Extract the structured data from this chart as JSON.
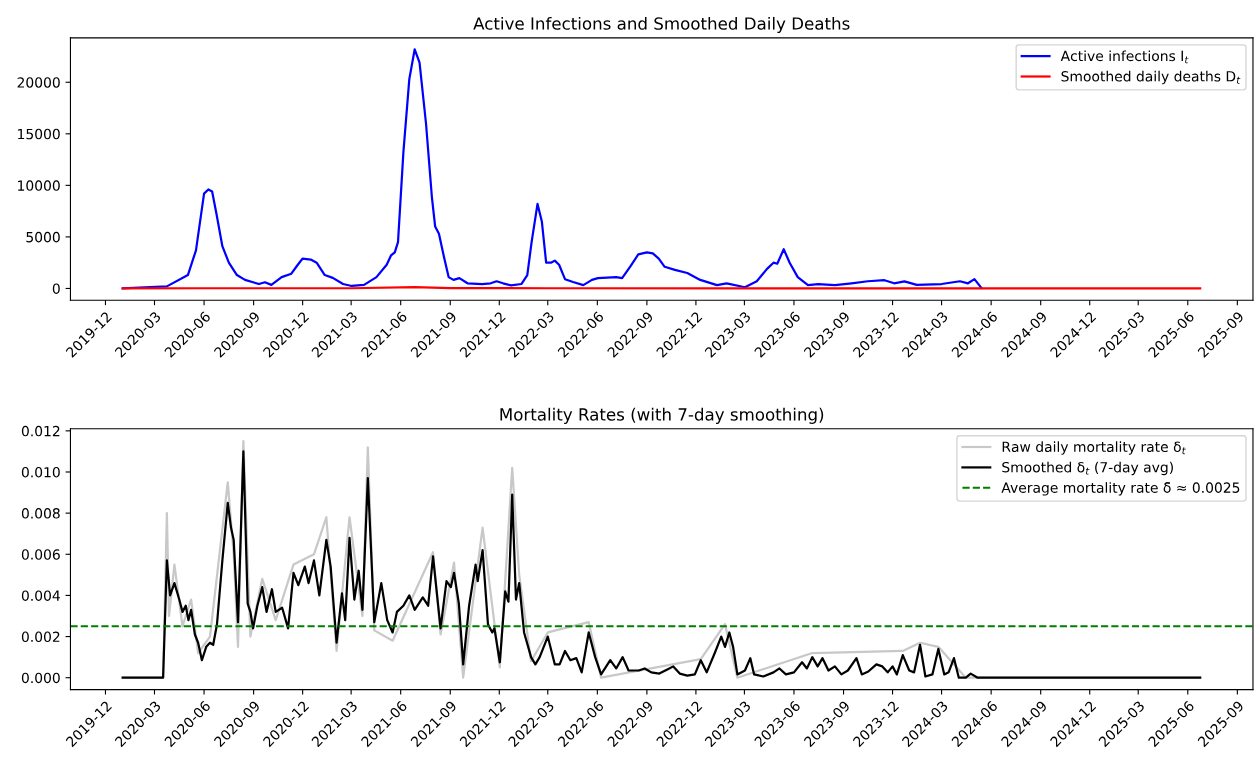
{
  "chart_data": [
    {
      "type": "line",
      "title": "Active Infections and Smoothed Daily Deaths",
      "xlim": [
        "2019-09-27",
        "2025-09-30"
      ],
      "xticks": [
        "2019-12",
        "2020-03",
        "2020-06",
        "2020-09",
        "2020-12",
        "2021-03",
        "2021-06",
        "2021-09",
        "2021-12",
        "2022-03",
        "2022-06",
        "2022-09",
        "2022-12",
        "2023-03",
        "2023-06",
        "2023-09",
        "2023-12",
        "2024-03",
        "2024-06",
        "2024-09",
        "2024-12",
        "2025-03",
        "2025-06",
        "2025-09"
      ],
      "ylim": [
        -1150,
        24300
      ],
      "yticks": [
        0,
        5000,
        10000,
        15000,
        20000
      ],
      "grid": false,
      "legend": "top right",
      "series": [
        {
          "name": "Active infections I$_{t}$",
          "color": "#0000ff",
          "x": [
            "2020-01-02",
            "2020-03-24",
            "2020-05-02",
            "2020-05-17",
            "2020-06-01",
            "2020-06-09",
            "2020-06-16",
            "2020-06-24",
            "2020-07-05",
            "2020-07-17",
            "2020-08-01",
            "2020-08-16",
            "2020-08-31",
            "2020-09-11",
            "2020-09-22",
            "2020-10-04",
            "2020-10-23",
            "2020-11-10",
            "2020-11-22",
            "2020-12-01",
            "2020-12-16",
            "2020-12-27",
            "2021-01-11",
            "2021-01-26",
            "2021-02-14",
            "2021-03-02",
            "2021-03-25",
            "2021-04-17",
            "2021-05-06",
            "2021-05-14",
            "2021-05-21",
            "2021-05-27",
            "2021-06-06",
            "2021-06-17",
            "2021-06-27",
            "2021-07-06",
            "2021-07-18",
            "2021-07-29",
            "2021-08-04",
            "2021-08-11",
            "2021-08-21",
            "2021-08-29",
            "2021-09-07",
            "2021-09-18",
            "2021-10-03",
            "2021-10-30",
            "2021-11-15",
            "2021-11-26",
            "2021-12-08",
            "2021-12-23",
            "2022-01-11",
            "2022-01-22",
            "2022-01-30",
            "2022-02-10",
            "2022-02-18",
            "2022-02-26",
            "2022-03-07",
            "2022-03-14",
            "2022-03-22",
            "2022-04-02",
            "2022-04-17",
            "2022-05-06",
            "2022-05-22",
            "2022-06-02",
            "2022-07-06",
            "2022-07-17",
            "2022-08-02",
            "2022-08-16",
            "2022-09-01",
            "2022-09-12",
            "2022-09-23",
            "2022-10-04",
            "2022-10-23",
            "2022-11-15",
            "2022-12-09",
            "2023-01-09",
            "2023-01-27",
            "2023-03-02",
            "2023-03-24",
            "2023-04-12",
            "2023-04-24",
            "2023-05-01",
            "2023-05-13",
            "2023-05-24",
            "2023-06-08",
            "2023-06-27",
            "2023-07-16",
            "2023-08-16",
            "2023-09-16",
            "2023-10-16",
            "2023-11-16",
            "2023-12-04",
            "2023-12-23",
            "2024-01-15",
            "2024-03-01",
            "2024-04-04",
            "2024-04-19",
            "2024-05-01",
            "2024-05-14"
          ],
          "values": [
            0,
            200,
            1300,
            3700,
            9200,
            9600,
            9400,
            7250,
            4100,
            2500,
            1300,
            830,
            600,
            430,
            600,
            350,
            1100,
            1430,
            2300,
            2900,
            2800,
            2500,
            1300,
            1030,
            430,
            240,
            350,
            1100,
            2300,
            3200,
            3500,
            4500,
            13200,
            20300,
            23200,
            21900,
            16000,
            8800,
            6000,
            5300,
            2900,
            1100,
            830,
            1000,
            500,
            430,
            500,
            700,
            500,
            300,
            430,
            1300,
            4500,
            8200,
            6500,
            2500,
            2500,
            2700,
            2300,
            900,
            630,
            320,
            830,
            1000,
            1100,
            1000,
            2200,
            3300,
            3500,
            3400,
            2900,
            2100,
            1800,
            1500,
            830,
            320,
            500,
            120,
            700,
            1900,
            2500,
            2400,
            3800,
            2500,
            1100,
            320,
            430,
            320,
            500,
            700,
            800,
            500,
            680,
            350,
            430,
            700,
            500,
            900,
            40
          ]
        },
        {
          "name": "Smoothed daily deaths D$_{t}$",
          "color": "#ff0000",
          "x": [
            "2020-01-02",
            "2020-06-01",
            "2021-03-01",
            "2021-06-27",
            "2021-09-01",
            "2022-03-01",
            "2024-05-14",
            "2024-05-15",
            "2025-06-24"
          ],
          "values": [
            0,
            20,
            20,
            120,
            30,
            20,
            5,
            0,
            0
          ]
        }
      ]
    },
    {
      "type": "line",
      "title": "Mortality Rates (with 7-day smoothing)",
      "xlim": [
        "2019-09-27",
        "2025-09-30"
      ],
      "xticks": [
        "2019-12",
        "2020-03",
        "2020-06",
        "2020-09",
        "2020-12",
        "2021-03",
        "2021-06",
        "2021-09",
        "2021-12",
        "2022-03",
        "2022-06",
        "2022-09",
        "2022-12",
        "2023-03",
        "2023-06",
        "2023-09",
        "2023-12",
        "2024-03",
        "2024-06",
        "2024-09",
        "2024-12",
        "2025-03",
        "2025-06",
        "2025-09"
      ],
      "ylim": [
        -0.00058,
        0.0121
      ],
      "yticks": [
        {
          "value": 0,
          "label": "0.000"
        },
        {
          "value": 0.002,
          "label": "0.002"
        },
        {
          "value": 0.004,
          "label": "0.004"
        },
        {
          "value": 0.006,
          "label": "0.006"
        },
        {
          "value": 0.008,
          "label": "0.008"
        },
        {
          "value": 0.01,
          "label": "0.010"
        },
        {
          "value": 0.012,
          "label": "0.012"
        }
      ],
      "grid": false,
      "legend": "top right",
      "ref_lines": [
        {
          "axis": "y",
          "value": 0.0025,
          "label": "Average mortality rate δ̄ ≈ 0.0025",
          "color": "#008000",
          "line_style": "dashed"
        }
      ],
      "series": [
        {
          "name": "Raw daily mortality rate δ$_{t}$",
          "color": "#c8c8c8",
          "x": [
            "2020-01-02",
            "2020-03-17",
            "2020-03-24",
            "2020-03-28",
            "2020-04-07",
            "2020-04-22",
            "2020-05-08",
            "2020-05-21",
            "2020-06-12",
            "2020-07-15",
            "2020-07-26",
            "2020-08-03",
            "2020-08-13",
            "2020-08-26",
            "2020-09-17",
            "2020-10-12",
            "2020-11-14",
            "2020-12-22",
            "2021-01-14",
            "2021-02-02",
            "2021-02-26",
            "2021-03-22",
            "2021-04-01",
            "2021-04-13",
            "2021-05-17",
            "2021-07-31",
            "2021-08-14",
            "2021-09-08",
            "2021-09-25",
            "2021-10-31",
            "2021-12-02",
            "2021-12-25",
            "2022-01-07",
            "2022-01-29",
            "2022-03-01",
            "2022-05-16",
            "2022-06-08",
            "2022-12-10",
            "2023-01-24",
            "2023-02-16",
            "2023-07-05",
            "2023-12-20",
            "2024-01-21",
            "2024-02-24",
            "2024-04-15",
            "2025-06-24"
          ],
          "values": [
            0,
            0,
            0.008,
            0.003,
            0.0055,
            0.0025,
            0.0038,
            0.0012,
            0.002,
            0.0095,
            0.006,
            0.0015,
            0.0115,
            0.002,
            0.0048,
            0.0028,
            0.0055,
            0.006,
            0.0078,
            0.0013,
            0.0078,
            0.003,
            0.0112,
            0.0023,
            0.0018,
            0.0061,
            0.0021,
            0.0056,
            0,
            0.0073,
            0.0005,
            0.0102,
            0.005,
            0.0008,
            0.0022,
            0.0027,
            0,
            0.0009,
            0.0026,
            0,
            0.0012,
            0.0013,
            0.0017,
            0.0015,
            0,
            0
          ]
        },
        {
          "name": "Smoothed δ$_{t}$ (7-day avg)",
          "color": "#000000",
          "x": [
            "2020-01-02",
            "2020-03-17",
            "2020-03-24",
            "2020-03-30",
            "2020-04-07",
            "2020-04-16",
            "2020-04-22",
            "2020-04-28",
            "2020-05-03",
            "2020-05-08",
            "2020-05-15",
            "2020-05-21",
            "2020-05-28",
            "2020-06-05",
            "2020-06-12",
            "2020-06-18",
            "2020-06-25",
            "2020-07-05",
            "2020-07-15",
            "2020-07-21",
            "2020-07-26",
            "2020-08-03",
            "2020-08-13",
            "2020-08-21",
            "2020-08-26",
            "2020-08-31",
            "2020-09-08",
            "2020-09-17",
            "2020-09-25",
            "2020-10-05",
            "2020-10-12",
            "2020-10-24",
            "2020-11-04",
            "2020-11-14",
            "2020-11-23",
            "2020-12-05",
            "2020-12-12",
            "2020-12-22",
            "2021-01-01",
            "2021-01-14",
            "2021-01-22",
            "2021-02-02",
            "2021-02-12",
            "2021-02-18",
            "2021-02-26",
            "2021-03-07",
            "2021-03-15",
            "2021-03-22",
            "2021-04-01",
            "2021-04-13",
            "2021-04-26",
            "2021-05-07",
            "2021-05-17",
            "2021-05-25",
            "2021-06-06",
            "2021-06-17",
            "2021-06-27",
            "2021-07-12",
            "2021-07-22",
            "2021-07-31",
            "2021-08-14",
            "2021-08-25",
            "2021-09-02",
            "2021-09-08",
            "2021-09-17",
            "2021-09-25",
            "2021-10-06",
            "2021-10-18",
            "2021-10-22",
            "2021-10-31",
            "2021-11-10",
            "2021-11-18",
            "2021-11-22",
            "2021-12-02",
            "2021-12-12",
            "2021-12-18",
            "2021-12-25",
            "2022-01-01",
            "2022-01-07",
            "2022-01-16",
            "2022-01-29",
            "2022-02-06",
            "2022-02-14",
            "2022-03-01",
            "2022-03-14",
            "2022-03-23",
            "2022-04-02",
            "2022-04-12",
            "2022-04-23",
            "2022-05-03",
            "2022-05-16",
            "2022-05-28",
            "2022-06-08",
            "2022-06-25",
            "2022-07-06",
            "2022-07-18",
            "2022-07-29",
            "2022-08-17",
            "2022-08-28",
            "2022-09-09",
            "2022-09-24",
            "2022-10-09",
            "2022-10-20",
            "2022-11-01",
            "2022-11-15",
            "2022-11-29",
            "2022-12-10",
            "2022-12-21",
            "2023-01-05",
            "2023-01-17",
            "2023-01-24",
            "2023-02-01",
            "2023-02-08",
            "2023-02-16",
            "2023-03-02",
            "2023-03-12",
            "2023-03-19",
            "2023-04-05",
            "2023-04-24",
            "2023-05-05",
            "2023-05-17",
            "2023-06-01",
            "2023-06-16",
            "2023-06-25",
            "2023-07-05",
            "2023-07-15",
            "2023-07-24",
            "2023-08-04",
            "2023-08-16",
            "2023-08-28",
            "2023-09-09",
            "2023-09-25",
            "2023-10-05",
            "2023-10-17",
            "2023-11-01",
            "2023-11-12",
            "2023-11-22",
            "2023-12-01",
            "2023-12-09",
            "2023-12-20",
            "2024-01-01",
            "2024-01-10",
            "2024-01-21",
            "2024-01-31",
            "2024-02-13",
            "2024-02-24",
            "2024-03-06",
            "2024-03-14",
            "2024-03-24",
            "2024-04-02",
            "2024-04-15",
            "2024-04-24",
            "2024-05-07",
            "2025-06-24"
          ],
          "values": [
            0,
            0,
            0.0057,
            0.004,
            0.0046,
            0.0038,
            0.0032,
            0.0035,
            0.0028,
            0.0033,
            0.0021,
            0.0017,
            0.00085,
            0.0015,
            0.0017,
            0.0016,
            0.0026,
            0.0057,
            0.0085,
            0.0073,
            0.0067,
            0.0027,
            0.011,
            0.0036,
            0.0032,
            0.0024,
            0.0035,
            0.0044,
            0.0032,
            0.0043,
            0.0032,
            0.0034,
            0.0024,
            0.0051,
            0.0045,
            0.0054,
            0.0046,
            0.0057,
            0.004,
            0.0067,
            0.0054,
            0.0017,
            0.0041,
            0.0028,
            0.0068,
            0.0038,
            0.0052,
            0.0033,
            0.0097,
            0.0027,
            0.0046,
            0.0028,
            0.0022,
            0.0032,
            0.0035,
            0.004,
            0.0033,
            0.0039,
            0.0035,
            0.0059,
            0.0024,
            0.0047,
            0.0044,
            0.0051,
            0.0036,
            0.00065,
            0.0035,
            0.0055,
            0.0047,
            0.0062,
            0.0026,
            0.0022,
            0.0024,
            0.00075,
            0.0042,
            0.0037,
            0.0089,
            0.0038,
            0.0046,
            0.0022,
            0.001,
            0.00065,
            0.001,
            0.002,
            0.00065,
            0.00065,
            0.0013,
            0.00085,
            0.00095,
            0.00026,
            0.0022,
            0.001,
            0.00016,
            0.00085,
            0.00045,
            0.001,
            0.00035,
            0.00035,
            0.00045,
            0.00026,
            0.0002,
            0.0004,
            0.00055,
            0.0002,
            0.0001,
            0.00016,
            0.00085,
            0.00026,
            0.0012,
            0.002,
            0.0015,
            0.0022,
            0.0015,
            0.00016,
            0.00035,
            0.00095,
            0.00016,
            6e-05,
            0.00026,
            0.00045,
            0.00016,
            0.00026,
            0.00075,
            0.00045,
            0.001,
            0.00055,
            0.00095,
            0.00035,
            0.00055,
            0.00016,
            0.00035,
            0.00095,
            0.00016,
            0.0003,
            0.00065,
            0.00055,
            0.00026,
            0.00055,
            0.00016,
            0.0011,
            0.00035,
            0.00026,
            0.0016,
            6e-05,
            0.00016,
            0.0014,
            0.00016,
            0.00026,
            0.00095,
            0,
            0,
            0.0002,
            0,
            0
          ]
        }
      ]
    }
  ]
}
